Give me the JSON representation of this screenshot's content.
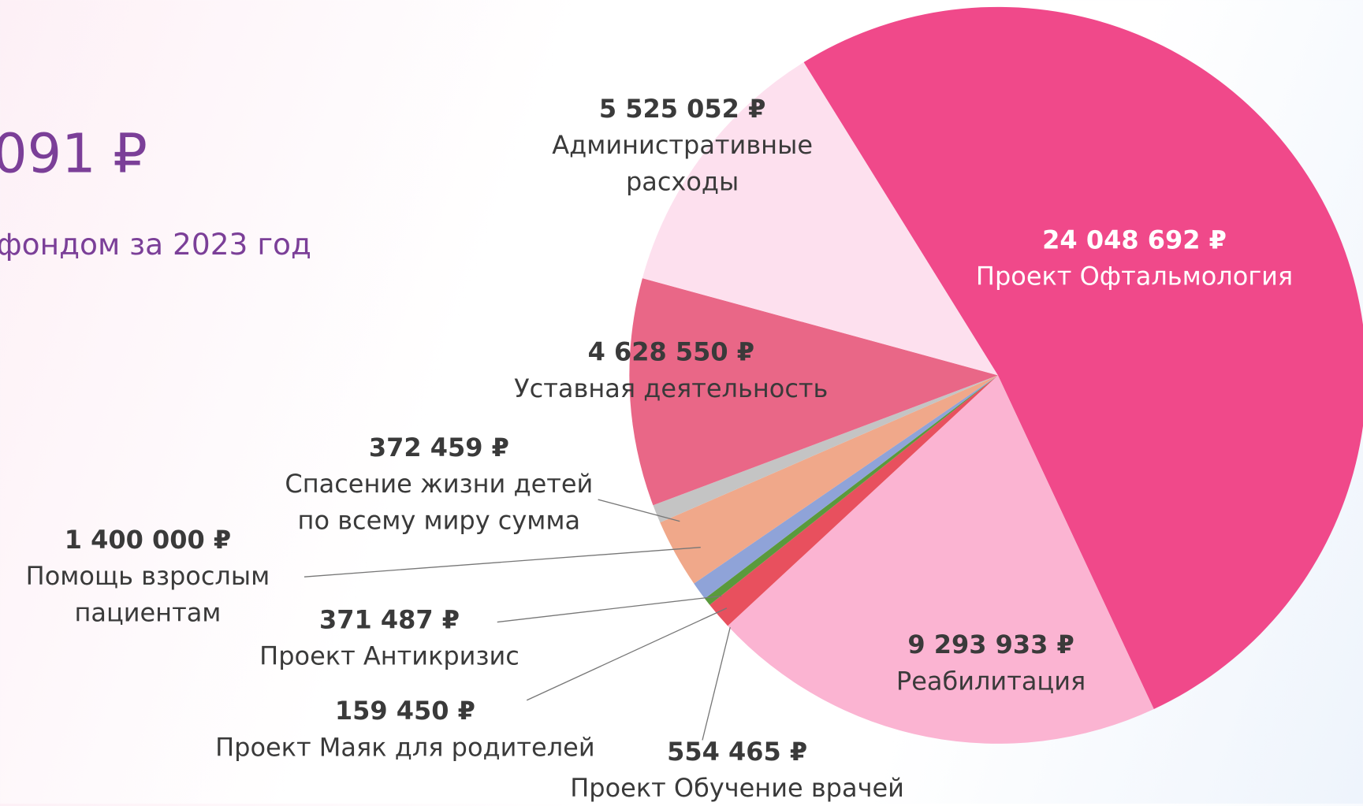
{
  "chart_data": {
    "type": "pie",
    "title": "091 ₽",
    "subtitle": "фондом за 2023 год",
    "categories": [
      "Проект Офтальмология",
      "Реабилитация",
      "Проект Обучение врачей",
      "Проект Маяк для родителей",
      "Проект Антикризис",
      "Помощь взрослым\nпациентам",
      "Спасение жизни детей\nпо всему миру сумма",
      "Уставная деятельность",
      "Административные\nрасходы"
    ],
    "values": [
      24048692,
      9293933,
      554465,
      159450,
      371487,
      1400000,
      372459,
      4628550,
      5525052
    ],
    "value_labels": [
      "24 048 692 ₽",
      "9 293 933 ₽",
      "554 465 ₽",
      "159 450 ₽",
      "371 487 ₽",
      "1 400 000 ₽",
      "372 459 ₽",
      "4 628 550 ₽",
      "5 525 052 ₽"
    ],
    "colors": [
      "#f0498a",
      "#fbb4d2",
      "#e8505e",
      "#5a9a3c",
      "#8fa3d8",
      "#f0a88a",
      "#c4c4c4",
      "#e96787",
      "#fde0ee"
    ]
  }
}
